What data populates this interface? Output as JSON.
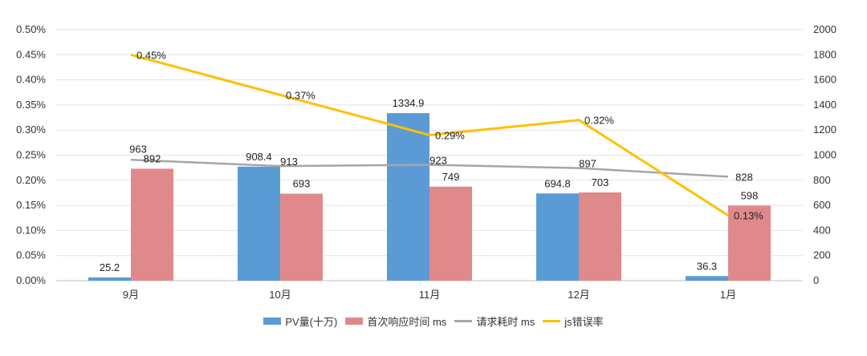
{
  "chart_data": {
    "type": "bar+line",
    "categories": [
      "9月",
      "10月",
      "11月",
      "12月",
      "1月"
    ],
    "series": [
      {
        "name": "PV量(十万)",
        "kind": "bar",
        "axis": "right",
        "color": "#5b9bd5",
        "values": [
          25.2,
          908.4,
          1334.9,
          694.8,
          36.3
        ],
        "labels": [
          "25.2",
          "908.4",
          "1334.9",
          "694.8",
          "36.3"
        ]
      },
      {
        "name": "首次响应时间 ms",
        "kind": "bar",
        "axis": "right",
        "color": "#e0898b",
        "values": [
          892,
          693,
          749,
          703,
          598
        ],
        "labels": [
          "892",
          "693",
          "749",
          "703",
          "598"
        ]
      },
      {
        "name": "请求耗时 ms",
        "kind": "line",
        "axis": "right",
        "color": "#a6a6a6",
        "values": [
          963,
          913,
          923,
          897,
          828
        ],
        "labels": [
          "963",
          "913",
          "923",
          "897",
          "828"
        ]
      },
      {
        "name": "js错误率",
        "kind": "line",
        "axis": "left",
        "color": "#ffc000",
        "values": [
          0.0045,
          0.0037,
          0.0029,
          0.0032,
          0.0013
        ],
        "labels": [
          "0.45%",
          "0.37%",
          "0.29%",
          "0.32%",
          "0.13%"
        ]
      }
    ],
    "y_left": {
      "range": [
        0,
        0.005
      ],
      "ticks": [
        "0.00%",
        "0.05%",
        "0.10%",
        "0.15%",
        "0.20%",
        "0.25%",
        "0.30%",
        "0.35%",
        "0.40%",
        "0.45%",
        "0.50%"
      ]
    },
    "y_right": {
      "range": [
        0,
        2000
      ],
      "ticks": [
        "0",
        "200",
        "400",
        "600",
        "800",
        "1000",
        "1200",
        "1400",
        "1600",
        "1800",
        "2000"
      ]
    },
    "grid": true,
    "legend_position": "bottom"
  }
}
